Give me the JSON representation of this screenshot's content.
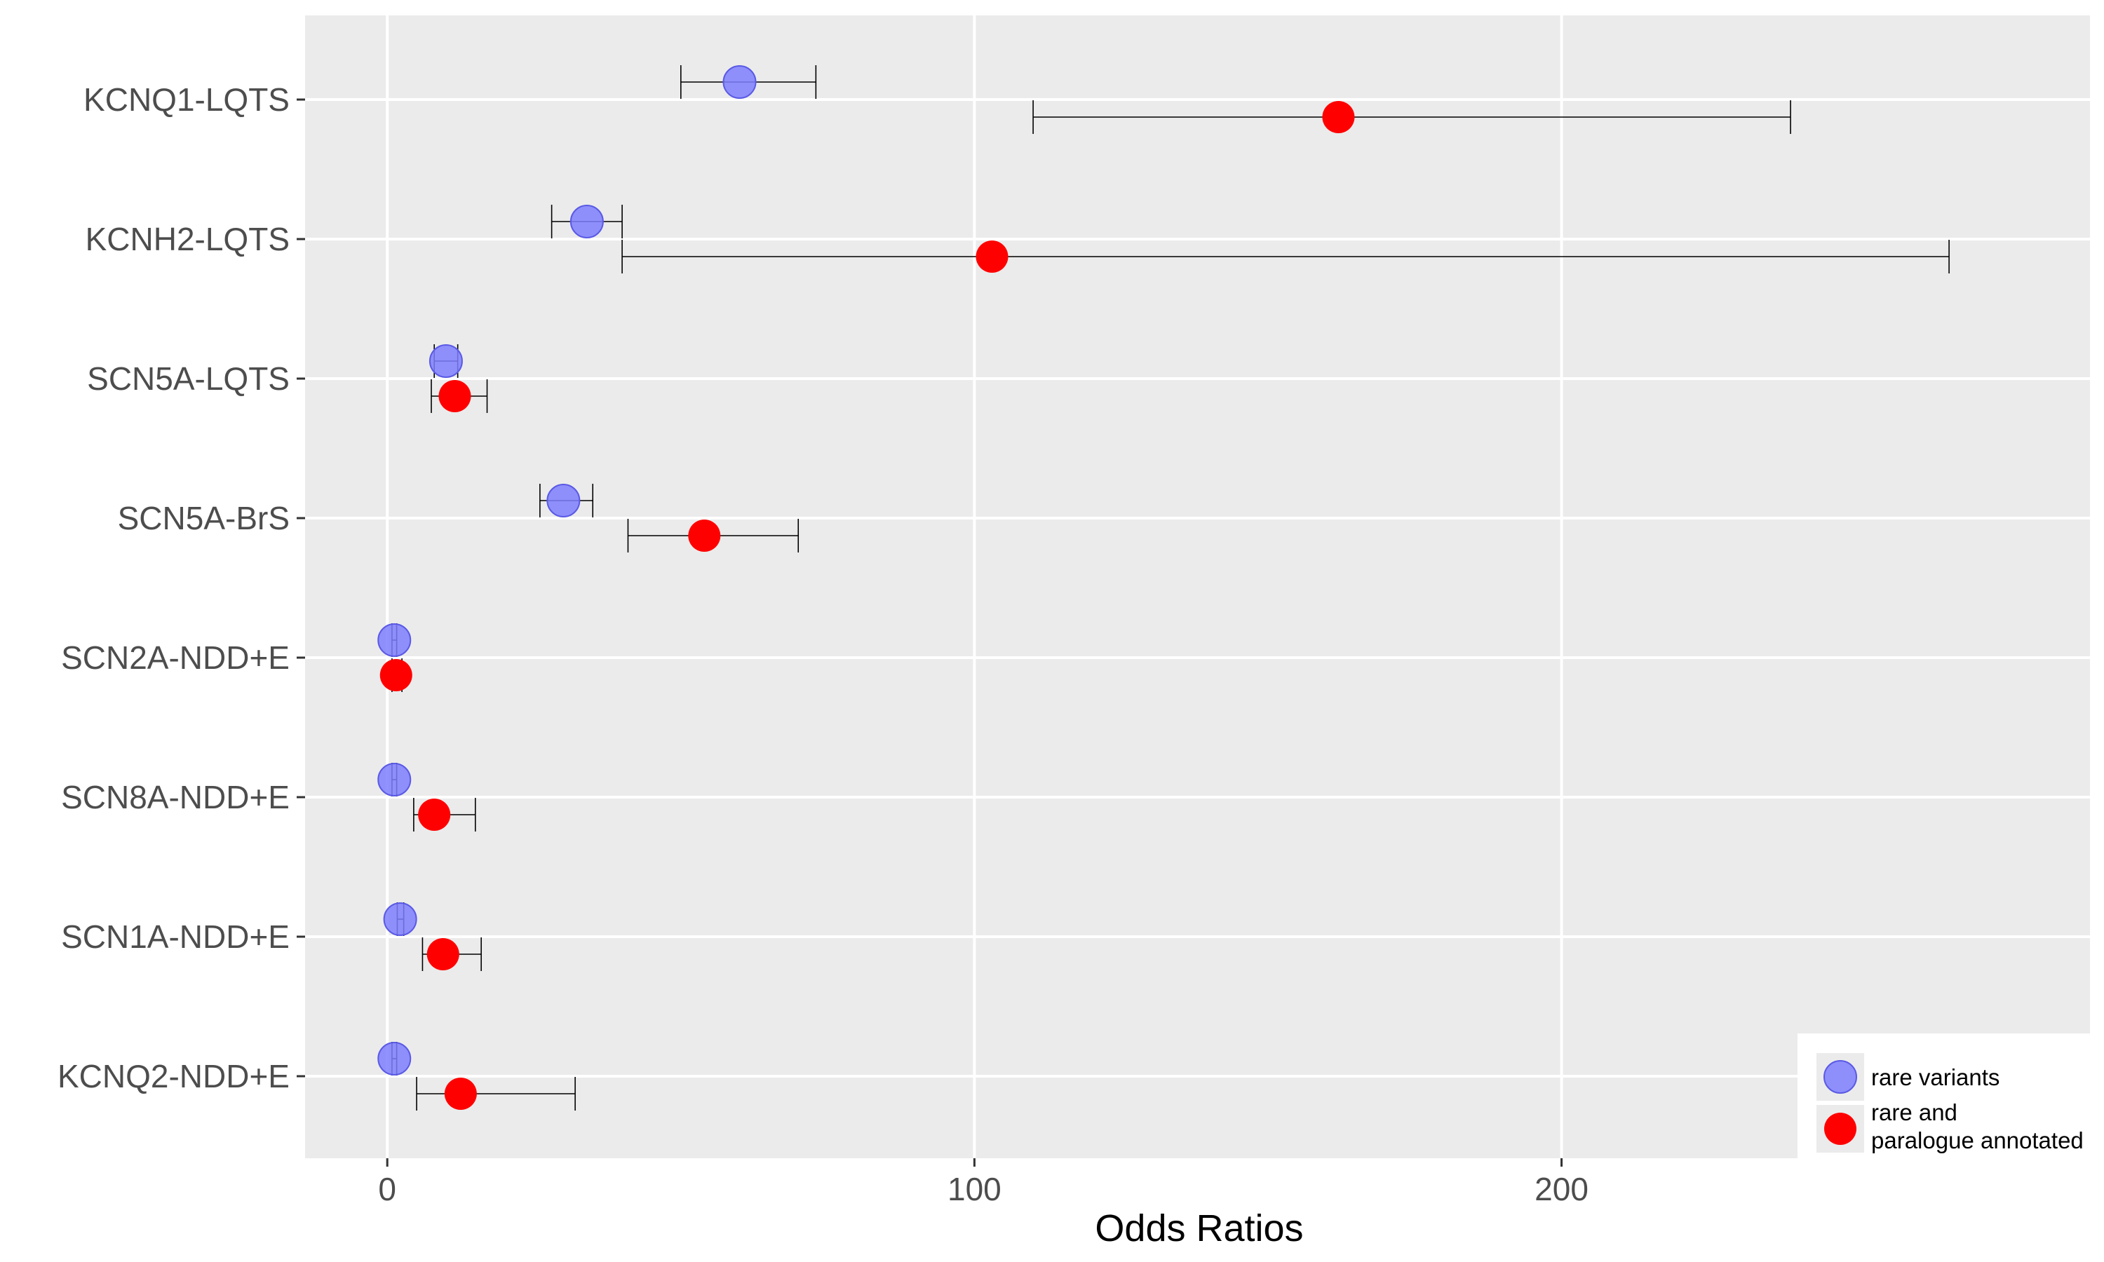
{
  "chart_data": {
    "type": "scatter",
    "orientation": "horizontal",
    "title": "",
    "xlabel": "Odds Ratios",
    "ylabel": "",
    "xlim": [
      -14,
      290
    ],
    "xticks": [
      0,
      100,
      200
    ],
    "grid": true,
    "legend_position": "bottom-right",
    "categories": [
      "KCNQ1-LQTS",
      "KCNH2-LQTS",
      "SCN5A-LQTS",
      "SCN5A-BrS",
      "SCN2A-NDD+E",
      "SCN8A-NDD+E",
      "SCN1A-NDD+E",
      "KCNQ2-NDD+E"
    ],
    "series": [
      {
        "name": "rare variants",
        "color": "#7F7FFF",
        "points": [
          {
            "category": "KCNQ1-LQTS",
            "or": 60,
            "lo": 50,
            "hi": 73
          },
          {
            "category": "KCNH2-LQTS",
            "or": 34,
            "lo": 28,
            "hi": 40
          },
          {
            "category": "SCN5A-LQTS",
            "or": 10,
            "lo": 8,
            "hi": 12
          },
          {
            "category": "SCN5A-BrS",
            "or": 30,
            "lo": 26,
            "hi": 35
          },
          {
            "category": "SCN2A-NDD+E",
            "or": 1.2,
            "lo": 0.8,
            "hi": 1.6
          },
          {
            "category": "SCN8A-NDD+E",
            "or": 1.2,
            "lo": 0.8,
            "hi": 1.6
          },
          {
            "category": "SCN1A-NDD+E",
            "or": 2.2,
            "lo": 1.7,
            "hi": 2.8
          },
          {
            "category": "KCNQ2-NDD+E",
            "or": 1.2,
            "lo": 0.8,
            "hi": 1.6
          }
        ]
      },
      {
        "name": "rare and paralogue annotated",
        "label_lines": [
          "rare and",
          "paralogue annotated"
        ],
        "color": "#FF0000",
        "points": [
          {
            "category": "KCNQ1-LQTS",
            "or": 162,
            "lo": 110,
            "hi": 239
          },
          {
            "category": "KCNH2-LQTS",
            "or": 103,
            "lo": 40,
            "hi": 266
          },
          {
            "category": "SCN5A-LQTS",
            "or": 11.5,
            "lo": 7.5,
            "hi": 17
          },
          {
            "category": "SCN5A-BrS",
            "or": 54,
            "lo": 41,
            "hi": 70
          },
          {
            "category": "SCN2A-NDD+E",
            "or": 1.5,
            "lo": 0.8,
            "hi": 2.5
          },
          {
            "category": "SCN8A-NDD+E",
            "or": 8,
            "lo": 4.5,
            "hi": 15
          },
          {
            "category": "SCN1A-NDD+E",
            "or": 9.5,
            "lo": 6,
            "hi": 16
          },
          {
            "category": "KCNQ2-NDD+E",
            "or": 12.5,
            "lo": 5,
            "hi": 32
          }
        ]
      }
    ]
  }
}
